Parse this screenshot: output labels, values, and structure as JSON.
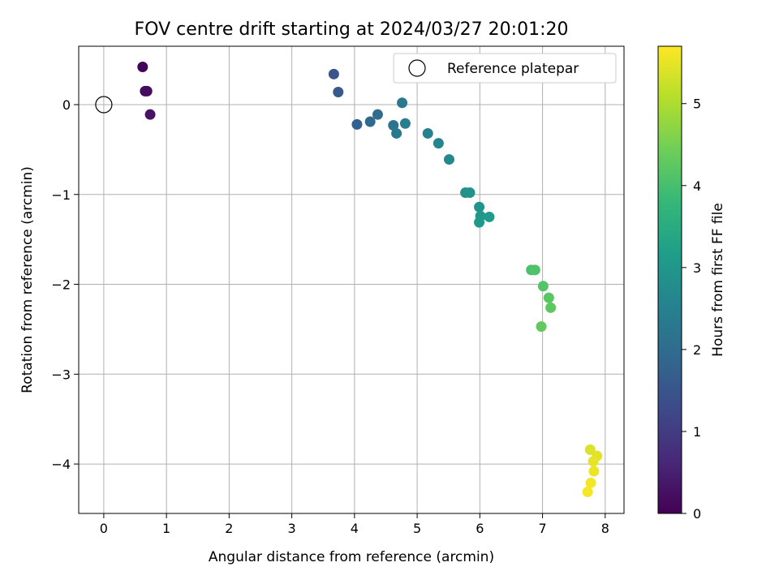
{
  "chart_data": {
    "type": "scatter",
    "title": "FOV centre drift starting at 2024/03/27 20:01:20",
    "xlabel": "Angular distance from reference (arcmin)",
    "ylabel": "Rotation from reference (arcmin)",
    "xlim": [
      -0.4,
      8.3
    ],
    "ylim": [
      -4.55,
      0.65
    ],
    "xticks": [
      "0",
      "1",
      "2",
      "3",
      "4",
      "5",
      "6",
      "7",
      "8"
    ],
    "yticks": [
      "0",
      "−1",
      "−2",
      "−3",
      "−4"
    ],
    "grid": true,
    "legend": {
      "position": "top-right",
      "label": "Reference platepar"
    },
    "reference_point": {
      "x": 0,
      "y": 0
    },
    "colorbar": {
      "label": "Hours from first FF file",
      "colormap": "viridis",
      "range": [
        0,
        5.7
      ],
      "ticks": [
        "0",
        "1",
        "2",
        "3",
        "4",
        "5"
      ]
    },
    "points": [
      {
        "x": 0.62,
        "y": 0.42,
        "c": 0.05
      },
      {
        "x": 0.66,
        "y": 0.15,
        "c": 0.15
      },
      {
        "x": 0.69,
        "y": 0.15,
        "c": 0.2
      },
      {
        "x": 0.74,
        "y": -0.11,
        "c": 0.3
      },
      {
        "x": 3.67,
        "y": 0.34,
        "c": 1.5
      },
      {
        "x": 3.74,
        "y": 0.14,
        "c": 1.6
      },
      {
        "x": 4.04,
        "y": -0.22,
        "c": 1.75
      },
      {
        "x": 4.25,
        "y": -0.19,
        "c": 1.9
      },
      {
        "x": 4.37,
        "y": -0.11,
        "c": 2.0
      },
      {
        "x": 4.62,
        "y": -0.23,
        "c": 2.2
      },
      {
        "x": 4.67,
        "y": -0.32,
        "c": 2.3
      },
      {
        "x": 4.76,
        "y": 0.02,
        "c": 2.35
      },
      {
        "x": 4.81,
        "y": -0.21,
        "c": 2.4
      },
      {
        "x": 5.17,
        "y": -0.32,
        "c": 2.5
      },
      {
        "x": 5.34,
        "y": -0.43,
        "c": 2.6
      },
      {
        "x": 5.51,
        "y": -0.61,
        "c": 2.7
      },
      {
        "x": 5.77,
        "y": -0.98,
        "c": 2.85
      },
      {
        "x": 5.84,
        "y": -0.98,
        "c": 2.9
      },
      {
        "x": 5.99,
        "y": -1.14,
        "c": 2.95
      },
      {
        "x": 6.01,
        "y": -1.24,
        "c": 3.0
      },
      {
        "x": 5.99,
        "y": -1.31,
        "c": 3.05
      },
      {
        "x": 6.15,
        "y": -1.25,
        "c": 3.1
      },
      {
        "x": 6.82,
        "y": -1.84,
        "c": 4.05
      },
      {
        "x": 6.88,
        "y": -1.84,
        "c": 4.1
      },
      {
        "x": 7.01,
        "y": -2.02,
        "c": 4.15
      },
      {
        "x": 7.1,
        "y": -2.15,
        "c": 4.2
      },
      {
        "x": 7.13,
        "y": -2.26,
        "c": 4.25
      },
      {
        "x": 6.98,
        "y": -2.47,
        "c": 4.3
      },
      {
        "x": 7.76,
        "y": -3.84,
        "c": 5.4
      },
      {
        "x": 7.87,
        "y": -3.91,
        "c": 5.45
      },
      {
        "x": 7.81,
        "y": -3.97,
        "c": 5.5
      },
      {
        "x": 7.82,
        "y": -4.08,
        "c": 5.55
      },
      {
        "x": 7.77,
        "y": -4.21,
        "c": 5.6
      },
      {
        "x": 7.72,
        "y": -4.31,
        "c": 5.65
      }
    ]
  }
}
